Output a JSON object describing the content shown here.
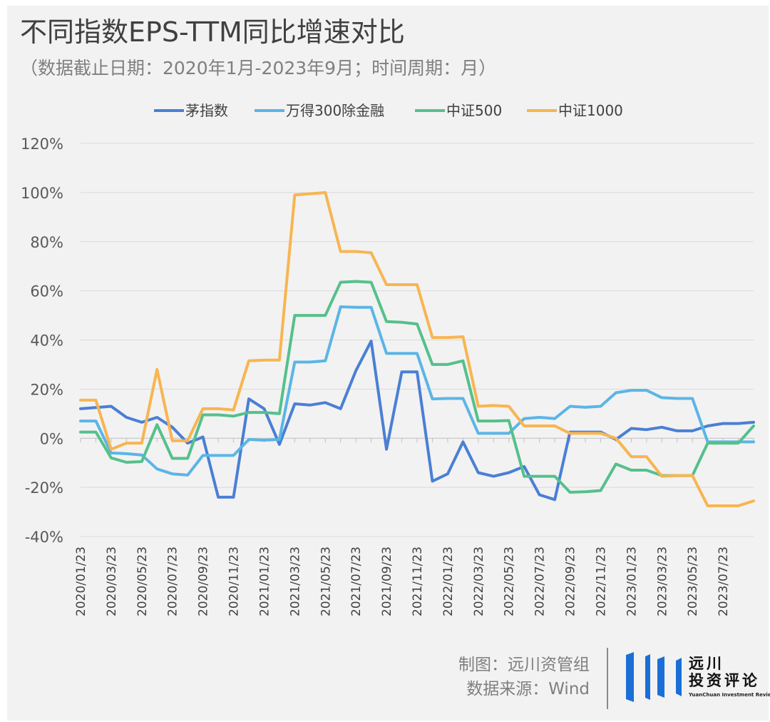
{
  "title": "不同指数EPS-TTM同比增速对比",
  "subtitle": "（数据截止日期：2020年1月-2023年9月；时间周期：月）",
  "footer": {
    "maker": "制图：远川资管组",
    "source": "数据来源：Wind"
  },
  "logo": {
    "name_line1": "远川",
    "name_line2": "投资评论",
    "english": "YuanChuan Investment Review",
    "color": "#1a6fd6"
  },
  "chart_data": {
    "type": "line",
    "ylim": [
      -0.4,
      1.2
    ],
    "yticks": [
      -0.4,
      -0.2,
      0,
      0.2,
      0.4,
      0.6,
      0.8,
      1.0,
      1.2
    ],
    "ytick_labels": [
      "-40%",
      "-20%",
      "0%",
      "20%",
      "40%",
      "60%",
      "80%",
      "100%",
      "120%"
    ],
    "grid": true,
    "legend_position": "top",
    "x": [
      "2020/01/23",
      "2020/02/23",
      "2020/03/23",
      "2020/04/23",
      "2020/05/23",
      "2020/06/23",
      "2020/07/23",
      "2020/08/23",
      "2020/09/23",
      "2020/10/23",
      "2020/11/23",
      "2020/12/23",
      "2021/01/23",
      "2021/02/23",
      "2021/03/23",
      "2021/04/23",
      "2021/05/23",
      "2021/06/23",
      "2021/07/23",
      "2021/08/23",
      "2021/09/23",
      "2021/10/23",
      "2021/11/23",
      "2021/12/23",
      "2022/01/23",
      "2022/02/23",
      "2022/03/23",
      "2022/04/23",
      "2022/05/23",
      "2022/06/23",
      "2022/07/23",
      "2022/08/23",
      "2022/09/23",
      "2022/10/23",
      "2022/11/23",
      "2022/12/23",
      "2023/01/23",
      "2023/02/23",
      "2023/03/23",
      "2023/04/23",
      "2023/05/23",
      "2023/06/23",
      "2023/07/23",
      "2023/08/23",
      "2023/09/23"
    ],
    "x_tick_labels": [
      "2020/01/23",
      "2020/03/23",
      "2020/05/23",
      "2020/07/23",
      "2020/09/23",
      "2020/11/23",
      "2021/01/23",
      "2021/03/23",
      "2021/05/23",
      "2021/07/23",
      "2021/09/23",
      "2021/11/23",
      "2022/01/23",
      "2022/03/23",
      "2022/05/23",
      "2022/07/23",
      "2022/09/23",
      "2022/11/23",
      "2023/01/23",
      "2023/03/23",
      "2023/05/23",
      "2023/07/23"
    ],
    "series": [
      {
        "name": "茅指数",
        "color": "#4a7fd4",
        "values": [
          0.12,
          0.125,
          0.13,
          0.085,
          0.065,
          0.085,
          0.045,
          -0.02,
          0.005,
          -0.24,
          -0.24,
          0.16,
          0.12,
          -0.025,
          0.14,
          0.135,
          0.145,
          0.12,
          0.275,
          0.395,
          -0.045,
          0.27,
          0.27,
          -0.175,
          -0.145,
          -0.015,
          -0.14,
          -0.155,
          -0.14,
          -0.115,
          -0.23,
          -0.25,
          0.025,
          0.025,
          0.025,
          -0.005,
          0.04,
          0.035,
          0.045,
          0.03,
          0.03,
          0.05,
          0.06,
          0.06,
          0.065
        ]
      },
      {
        "name": "万得300除金融",
        "color": "#5bb5e6",
        "values": [
          0.07,
          0.07,
          -0.06,
          -0.063,
          -0.068,
          -0.125,
          -0.145,
          -0.15,
          -0.07,
          -0.07,
          -0.07,
          -0.005,
          -0.008,
          -0.005,
          0.31,
          0.31,
          0.315,
          0.535,
          0.533,
          0.533,
          0.345,
          0.345,
          0.345,
          0.16,
          0.162,
          0.162,
          0.02,
          0.02,
          0.02,
          0.08,
          0.085,
          0.08,
          0.13,
          0.126,
          0.13,
          0.185,
          0.195,
          0.195,
          0.165,
          0.162,
          0.162,
          -0.015,
          -0.015,
          -0.015,
          -0.015
        ]
      },
      {
        "name": "中证500",
        "color": "#55c08c",
        "values": [
          0.025,
          0.025,
          -0.08,
          -0.098,
          -0.095,
          0.055,
          -0.082,
          -0.082,
          0.095,
          0.095,
          0.09,
          0.105,
          0.105,
          0.1,
          0.5,
          0.5,
          0.5,
          0.635,
          0.638,
          0.635,
          0.475,
          0.472,
          0.465,
          0.3,
          0.3,
          0.315,
          0.07,
          0.07,
          0.072,
          -0.155,
          -0.155,
          -0.155,
          -0.22,
          -0.218,
          -0.213,
          -0.105,
          -0.13,
          -0.13,
          -0.152,
          -0.152,
          -0.152,
          -0.02,
          -0.02,
          -0.02,
          0.05
        ]
      },
      {
        "name": "中证1000",
        "color": "#f8b550",
        "values": [
          0.155,
          0.155,
          -0.045,
          -0.02,
          -0.02,
          0.28,
          -0.01,
          -0.01,
          0.12,
          0.12,
          0.115,
          0.315,
          0.318,
          0.318,
          0.99,
          0.995,
          1.0,
          0.76,
          0.76,
          0.755,
          0.625,
          0.625,
          0.625,
          0.41,
          0.41,
          0.413,
          0.13,
          0.133,
          0.13,
          0.05,
          0.05,
          0.05,
          0.02,
          0.02,
          0.02,
          0.0,
          -0.075,
          -0.075,
          -0.155,
          -0.152,
          -0.152,
          -0.275,
          -0.275,
          -0.275,
          -0.255
        ]
      }
    ]
  }
}
